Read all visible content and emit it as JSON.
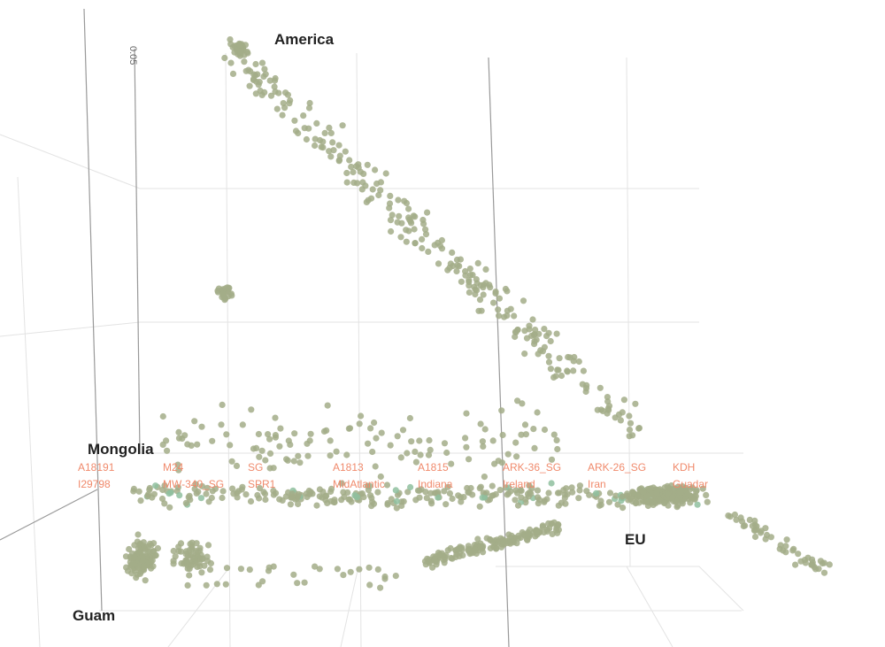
{
  "chart_data": {
    "type": "scatter",
    "projection": "3d",
    "title": "",
    "axis_ticks": [
      "0.05"
    ],
    "clusters": [
      {
        "label": "America"
      },
      {
        "label": "Mongolia"
      },
      {
        "label": "Guam"
      },
      {
        "label": "EU"
      }
    ],
    "sample_labels": [
      "A18191",
      "M24",
      "SG",
      "A1813",
      "A1815",
      "ARK-36_SG",
      "ARK-26_SG",
      "KDH",
      "I29798",
      "MW-340_SG",
      "SPR1",
      "MidAtlantic",
      "Indiana",
      "Ireland",
      "Iran",
      "Guadar"
    ],
    "colors": {
      "points": "#a3ad88",
      "labels": "#f08a6c",
      "points_alt": "#8fbf9f"
    }
  }
}
